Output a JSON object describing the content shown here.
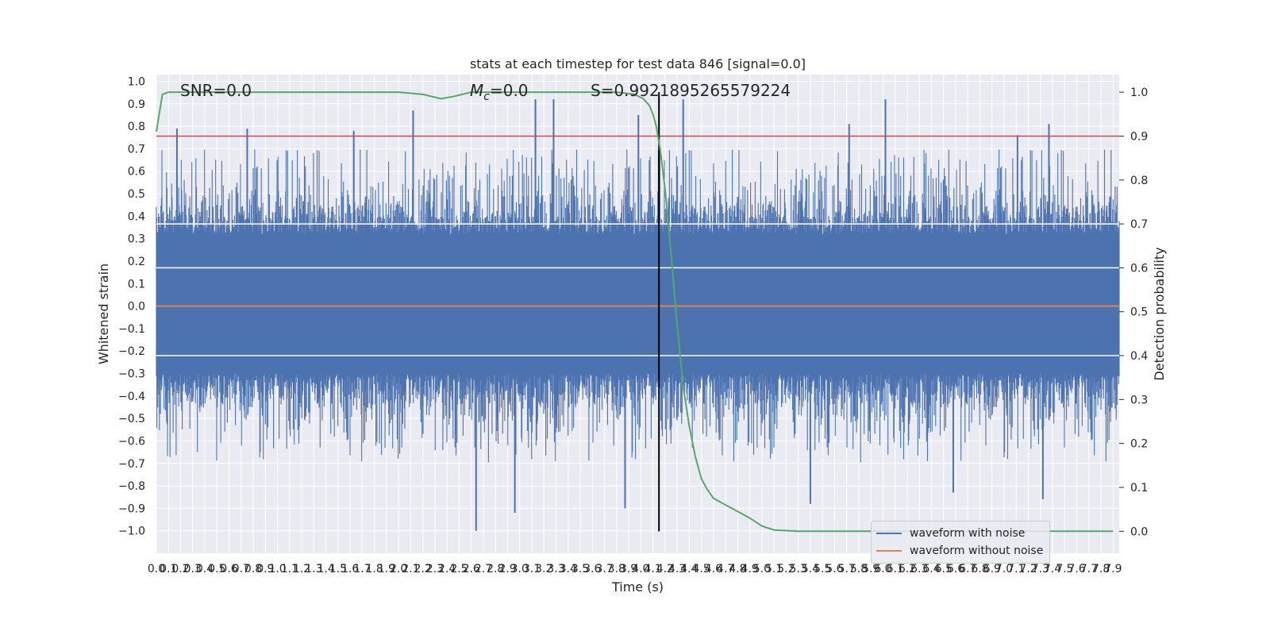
{
  "chart_data": {
    "type": "line",
    "title": "stats at each timestep for test data 846 [signal=0.0]",
    "xlabel": "Time (s)",
    "ylabel": "Whitened strain",
    "y2label": "Detection probability",
    "xlim": [
      0.0,
      7.95
    ],
    "ylim": [
      -1.1,
      1.03
    ],
    "y2lim": [
      -0.05,
      1.04
    ],
    "x_ticks": [
      "0.0",
      "0.1",
      "0.2",
      "0.3",
      "0.4",
      "0.5",
      "0.6",
      "0.7",
      "0.8",
      "0.9",
      "1.0",
      "1.1",
      "1.2",
      "1.3",
      "1.4",
      "1.5",
      "1.6",
      "1.7",
      "1.8",
      "1.9",
      "2.0",
      "2.1",
      "2.2",
      "2.3",
      "2.4",
      "2.5",
      "2.6",
      "2.7",
      "2.8",
      "2.9",
      "3.0",
      "3.1",
      "3.2",
      "3.3",
      "3.4",
      "3.5",
      "3.6",
      "3.7",
      "3.8",
      "3.9",
      "4.0",
      "4.1",
      "4.2",
      "4.3",
      "4.4",
      "4.5",
      "4.6",
      "4.7",
      "4.8",
      "4.9",
      "5.0",
      "5.1",
      "5.2",
      "5.3",
      "5.4",
      "5.5",
      "5.6",
      "5.7",
      "5.8",
      "5.9",
      "6.0",
      "6.1",
      "6.2",
      "6.3",
      "6.4",
      "6.5",
      "6.6",
      "6.7",
      "6.8",
      "6.9",
      "7.0",
      "7.1",
      "7.2",
      "7.3",
      "7.4",
      "7.5",
      "7.6",
      "7.7",
      "7.8",
      "7.9"
    ],
    "y_ticks": [
      "1.0",
      "0.9",
      "0.8",
      "0.7",
      "0.6",
      "0.5",
      "0.4",
      "0.3",
      "0.2",
      "0.1",
      "0.0",
      "−0.1",
      "−0.2",
      "−0.3",
      "−0.4",
      "−0.5",
      "−0.6",
      "−0.7",
      "−0.8",
      "−0.9",
      "−1.0"
    ],
    "y2_ticks": [
      "1.0",
      "0.9",
      "0.8",
      "0.7",
      "0.6",
      "0.5",
      "0.4",
      "0.3",
      "0.2",
      "0.1",
      "0.0"
    ],
    "annotations": {
      "snr": "SNR=0.0",
      "mc_symbol": "M",
      "mc_sub": "c",
      "mc_value": "=0.0",
      "s_value": "S=0.9921895265579224"
    },
    "threshold": 0.9,
    "event_time": 4.15,
    "series": [
      {
        "name": "waveform with noise",
        "color": "#4c72b0",
        "axis": "left",
        "envelope_peaks": [
          {
            "x": 0.17,
            "y": 0.79
          },
          {
            "x": 0.75,
            "y": 0.79
          },
          {
            "x": 1.63,
            "y": 0.78
          },
          {
            "x": 2.12,
            "y": 0.87
          },
          {
            "x": 3.13,
            "y": 0.92
          },
          {
            "x": 3.28,
            "y": 0.92
          },
          {
            "x": 3.98,
            "y": 0.85
          },
          {
            "x": 4.35,
            "y": 0.92
          },
          {
            "x": 5.72,
            "y": 0.81
          },
          {
            "x": 6.02,
            "y": 0.92
          },
          {
            "x": 7.11,
            "y": 0.76
          },
          {
            "x": 7.37,
            "y": 0.81
          },
          {
            "x": 2.64,
            "y": -1.0
          },
          {
            "x": 2.96,
            "y": -0.92
          },
          {
            "x": 3.87,
            "y": -0.9
          },
          {
            "x": 5.4,
            "y": -0.88
          },
          {
            "x": 6.58,
            "y": -0.83
          },
          {
            "x": 7.32,
            "y": -0.86
          }
        ]
      },
      {
        "name": "waveform without noise",
        "color": "#dd8452",
        "axis": "left",
        "x": [
          0.0,
          7.95
        ],
        "y": [
          0.0,
          0.0
        ]
      },
      {
        "color": "#55a868",
        "axis": "right",
        "x": [
          0.0,
          0.05,
          0.1,
          0.5,
          1.0,
          2.0,
          2.2,
          2.35,
          2.45,
          2.6,
          3.0,
          3.5,
          3.8,
          3.95,
          4.02,
          4.07,
          4.1,
          4.13,
          4.16,
          4.2,
          4.25,
          4.3,
          4.35,
          4.4,
          4.45,
          4.5,
          4.55,
          4.6,
          4.7,
          4.8,
          4.9,
          5.0,
          5.1,
          5.3,
          6.0,
          7.0,
          7.9
        ],
        "y": [
          0.91,
          0.995,
          1.0,
          1.0,
          1.0,
          1.0,
          0.995,
          0.985,
          0.99,
          1.0,
          1.0,
          1.0,
          1.0,
          0.995,
          0.985,
          0.97,
          0.95,
          0.92,
          0.87,
          0.78,
          0.63,
          0.47,
          0.33,
          0.24,
          0.17,
          0.12,
          0.095,
          0.075,
          0.06,
          0.045,
          0.03,
          0.012,
          0.003,
          0.0,
          0.0,
          0.0,
          0.0
        ]
      }
    ],
    "hlines_right_axis": [
      0.7,
      0.6,
      0.4
    ],
    "legend_position": "lower-right",
    "grid": true
  }
}
